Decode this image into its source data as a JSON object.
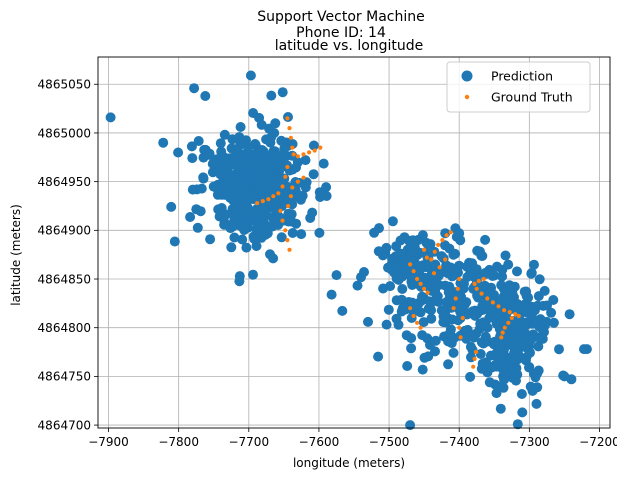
{
  "chart_data": {
    "type": "scatter",
    "title_lines": [
      "Support Vector Machine",
      "Phone ID: 14",
      "latitude vs. longitude"
    ],
    "xlabel": "longitude (meters)",
    "ylabel": "latitude (meters)",
    "xlim": [
      -7915,
      -7185
    ],
    "ylim": [
      4864697,
      4865078
    ],
    "xticks": [
      -7900,
      -7800,
      -7700,
      -7600,
      -7500,
      -7400,
      -7300,
      -7200
    ],
    "xtick_labels": [
      "−7900",
      "−7800",
      "−7700",
      "−7600",
      "−7500",
      "−7400",
      "−7300",
      "−7200"
    ],
    "yticks": [
      4864700,
      4864750,
      4864800,
      4864850,
      4864900,
      4864950,
      4865000,
      4865050
    ],
    "ytick_labels": [
      "4864700",
      "4864750",
      "4864800",
      "4864850",
      "4864900",
      "4864950",
      "4865000",
      "4865050"
    ],
    "grid": true,
    "legend_position": "top-right",
    "series": [
      {
        "name": "Prediction",
        "color": "#1f77b4",
        "marker": "large-circle",
        "clusters": [
          {
            "cx": -7690,
            "cy": 4864945,
            "sx": 38,
            "sy": 28,
            "n": 480
          },
          {
            "cx": -7410,
            "cy": 4864830,
            "sx": 45,
            "sy": 28,
            "n": 240
          },
          {
            "cx": -7330,
            "cy": 4864790,
            "sx": 28,
            "sy": 30,
            "n": 220
          },
          {
            "cx": -7475,
            "cy": 4864870,
            "sx": 18,
            "sy": 15,
            "n": 80
          }
        ],
        "points": [
          [
            -7897,
            4865016
          ],
          [
            -7822,
            4864990
          ],
          [
            -7778,
            4865046
          ],
          [
            -7762,
            4865038
          ],
          [
            -7697,
            4865059
          ],
          [
            -7575,
            4864854
          ],
          [
            -7582,
            4864834
          ],
          [
            -7218,
            4864778
          ],
          [
            -7222,
            4864778
          ],
          [
            -7240,
            4864747
          ],
          [
            -7250,
            4864750
          ],
          [
            -7265,
            4864805
          ],
          [
            -7310,
            4864713
          ],
          [
            -7400,
            4864897
          ],
          [
            -7420,
            4864897
          ],
          [
            -7530,
            4864806
          ],
          [
            -7470,
            4864700
          ]
        ]
      },
      {
        "name": "Ground Truth",
        "color": "#ff7f0e",
        "marker": "small-dot",
        "points": [
          [
            -7645,
            4865015
          ],
          [
            -7642,
            4865005
          ],
          [
            -7640,
            4864995
          ],
          [
            -7638,
            4864985
          ],
          [
            -7636,
            4864978
          ],
          [
            -7630,
            4864976
          ],
          [
            -7622,
            4864978
          ],
          [
            -7614,
            4864980
          ],
          [
            -7606,
            4864982
          ],
          [
            -7598,
            4864985
          ],
          [
            -7645,
            4864965
          ],
          [
            -7648,
            4864955
          ],
          [
            -7652,
            4864945
          ],
          [
            -7658,
            4864938
          ],
          [
            -7665,
            4864935
          ],
          [
            -7672,
            4864932
          ],
          [
            -7680,
            4864930
          ],
          [
            -7688,
            4864928
          ],
          [
            -7655,
            4864920
          ],
          [
            -7652,
            4864910
          ],
          [
            -7648,
            4864900
          ],
          [
            -7645,
            4864890
          ],
          [
            -7642,
            4864880
          ],
          [
            -7638,
            4864944
          ],
          [
            -7630,
            4864950
          ],
          [
            -7622,
            4864954
          ],
          [
            -7640,
            4864935
          ],
          [
            -7644,
            4864925
          ],
          [
            -7470,
            4864865
          ],
          [
            -7465,
            4864858
          ],
          [
            -7460,
            4864850
          ],
          [
            -7455,
            4864845
          ],
          [
            -7450,
            4864840
          ],
          [
            -7445,
            4864836
          ],
          [
            -7440,
            4864870
          ],
          [
            -7435,
            4864878
          ],
          [
            -7430,
            4864885
          ],
          [
            -7424,
            4864890
          ],
          [
            -7418,
            4864895
          ],
          [
            -7412,
            4864898
          ],
          [
            -7420,
            4864870
          ],
          [
            -7428,
            4864862
          ],
          [
            -7436,
            4864856
          ],
          [
            -7470,
            4864820
          ],
          [
            -7465,
            4864812
          ],
          [
            -7460,
            4864805
          ],
          [
            -7455,
            4864800
          ],
          [
            -7400,
            4864850
          ],
          [
            -7402,
            4864840
          ],
          [
            -7405,
            4864830
          ],
          [
            -7408,
            4864820
          ],
          [
            -7400,
            4864800
          ],
          [
            -7395,
            4864810
          ],
          [
            -7398,
            4864790
          ],
          [
            -7375,
            4864840
          ],
          [
            -7368,
            4864835
          ],
          [
            -7360,
            4864830
          ],
          [
            -7352,
            4864826
          ],
          [
            -7344,
            4864822
          ],
          [
            -7336,
            4864818
          ],
          [
            -7328,
            4864816
          ],
          [
            -7320,
            4864814
          ],
          [
            -7315,
            4864812
          ],
          [
            -7325,
            4864810
          ],
          [
            -7330,
            4864805
          ],
          [
            -7335,
            4864800
          ],
          [
            -7338,
            4864795
          ],
          [
            -7340,
            4864790
          ],
          [
            -7378,
            4864845
          ],
          [
            -7372,
            4864848
          ],
          [
            -7365,
            4864850
          ],
          [
            -7380,
            4864760
          ],
          [
            -7378,
            4864768
          ],
          [
            -7376,
            4864775
          ],
          [
            -7450,
            4864880
          ],
          [
            -7446,
            4864872
          ]
        ]
      }
    ]
  }
}
